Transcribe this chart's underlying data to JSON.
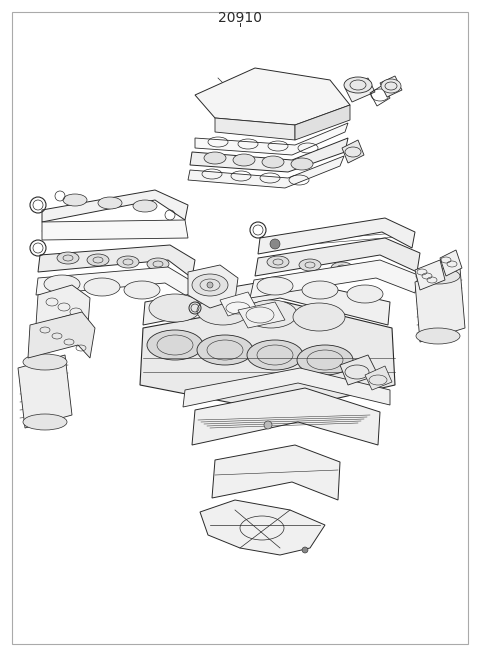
{
  "title": "20910",
  "fig_width": 4.8,
  "fig_height": 6.56,
  "dpi": 100,
  "background_color": "#ffffff",
  "border_color": "#aaaaaa",
  "line_color": "#2a2a2a",
  "title_fontsize": 10,
  "border_lw": 0.8
}
